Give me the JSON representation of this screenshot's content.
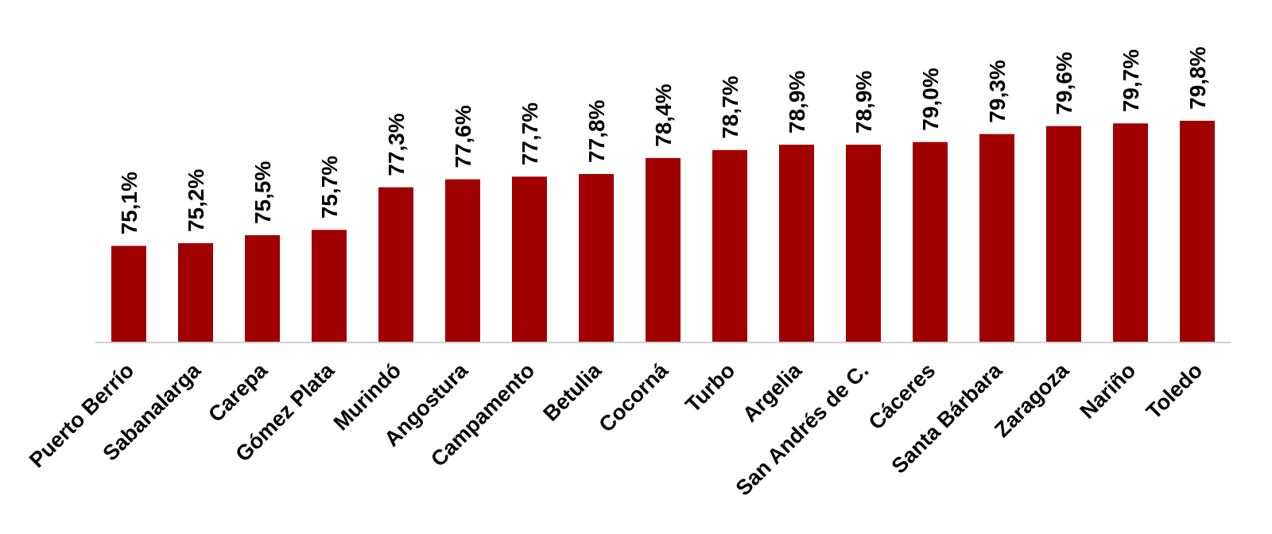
{
  "chart_data": {
    "type": "bar",
    "title": "",
    "xlabel": "",
    "ylabel": "",
    "categories": [
      "Puerto Berrío",
      "Sabanalarga",
      "Carepa",
      "Gómez Plata",
      "Murindó",
      "Angostura",
      "Campamento",
      "Betulia",
      "Cocorná",
      "Turbo",
      "Argelia",
      "San Andrés de C.",
      "Cáceres",
      "Santa Bárbara",
      "Zaragoza",
      "Nariño",
      "Toledo"
    ],
    "values": [
      75.1,
      75.2,
      75.5,
      75.7,
      77.3,
      77.6,
      77.7,
      77.8,
      78.4,
      78.7,
      78.9,
      78.9,
      79.0,
      79.3,
      79.6,
      79.7,
      79.8
    ],
    "data_labels": [
      "75,1%",
      "75,2%",
      "75,5%",
      "75,7%",
      "77,3%",
      "77,6%",
      "77,7%",
      "77,8%",
      "78,4%",
      "78,7%",
      "78,9%",
      "78,9%",
      "79,0%",
      "79,3%",
      "79,6%",
      "79,7%",
      "79,8%"
    ],
    "unit": "%",
    "ylim": [
      71.5,
      80.3
    ],
    "grid": false,
    "legend": "none",
    "bar_color": "#a00000"
  }
}
